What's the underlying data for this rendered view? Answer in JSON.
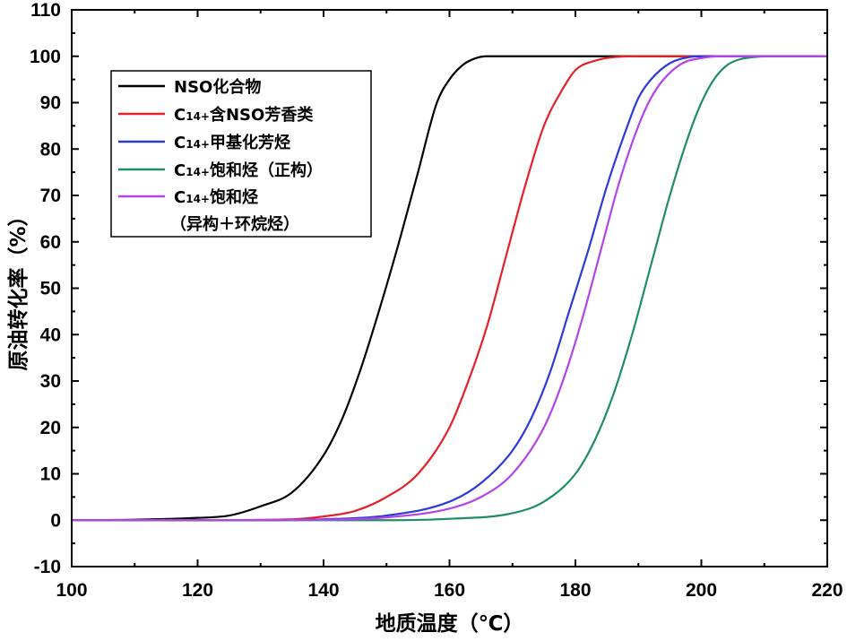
{
  "chart_data": {
    "type": "line",
    "title": "",
    "xlabel": "地质温度（℃）",
    "ylabel": "原油转化率（%）",
    "xlim": [
      100,
      220
    ],
    "ylim": [
      -10,
      110
    ],
    "xticks": [
      100,
      120,
      140,
      160,
      180,
      200,
      220
    ],
    "yticks": [
      -10,
      0,
      10,
      20,
      30,
      40,
      50,
      60,
      70,
      80,
      90,
      100,
      110
    ],
    "x_minor_step": 10,
    "y_minor_step": 5,
    "legend_position": "top-left",
    "series": [
      {
        "name": "NSO化合物",
        "legend_prefix": "",
        "legend_sub": "",
        "legend_main": "NSO化合物",
        "legend_line2": "",
        "color": "#000000",
        "x": [
          100,
          110,
          120,
          125,
          130,
          135,
          140,
          143,
          146,
          149,
          152,
          155,
          158,
          160,
          162,
          164,
          166,
          168,
          170,
          180,
          200,
          220
        ],
        "values": [
          0,
          0.1,
          0.5,
          1,
          3,
          6,
          14,
          22,
          33,
          46,
          60,
          75,
          90,
          95,
          98,
          99.5,
          100,
          100,
          100,
          100,
          100,
          100
        ]
      },
      {
        "name": "C14+含NSO芳香类",
        "legend_prefix": "C",
        "legend_sub": "14+",
        "legend_main": "含NSO芳香类",
        "legend_line2": "",
        "color": "#e32126",
        "x": [
          100,
          120,
          135,
          140,
          145,
          150,
          155,
          160,
          163,
          166,
          169,
          172,
          175,
          178,
          180,
          183,
          186,
          190,
          220
        ],
        "values": [
          0,
          0,
          0.2,
          0.8,
          2,
          5,
          10,
          20,
          30,
          42,
          57,
          72,
          85,
          93,
          97,
          99,
          99.8,
          100,
          100
        ]
      },
      {
        "name": "C14+甲基化芳烃",
        "legend_prefix": "C",
        "legend_sub": "14+",
        "legend_main": "甲基化芳烃",
        "legend_line2": "",
        "color": "#2b3bd6",
        "x": [
          100,
          130,
          140,
          150,
          160,
          165,
          170,
          173,
          176,
          179,
          182,
          185,
          188,
          190,
          192,
          195,
          198,
          200,
          220
        ],
        "values": [
          0,
          0,
          0.2,
          1,
          4,
          8,
          15,
          22,
          32,
          45,
          58,
          72,
          84,
          91,
          95,
          98.5,
          99.8,
          100,
          100
        ]
      },
      {
        "name": "C14+饱和烃（正构）",
        "legend_prefix": "C",
        "legend_sub": "14+",
        "legend_main": "饱和烃（正构）",
        "legend_line2": "",
        "color": "#1f8c6a",
        "x": [
          100,
          150,
          160,
          170,
          175,
          180,
          183,
          186,
          189,
          192,
          195,
          198,
          200,
          202,
          204,
          206,
          209,
          212,
          220
        ],
        "values": [
          0,
          0,
          0.3,
          1.5,
          4,
          10,
          17,
          27,
          40,
          55,
          70,
          83,
          90,
          95,
          98,
          99.3,
          99.9,
          100,
          100
        ]
      },
      {
        "name": "C14+饱和烃（异构＋环烷烃）",
        "legend_prefix": "C",
        "legend_sub": "14+",
        "legend_main": "饱和烃",
        "legend_line2": "（异构＋环烷烃）",
        "color": "#b444e6",
        "x": [
          100,
          140,
          150,
          160,
          165,
          170,
          175,
          178,
          181,
          184,
          187,
          190,
          192,
          194,
          197,
          200,
          203,
          220
        ],
        "values": [
          0,
          0.1,
          0.6,
          2.5,
          5,
          10,
          20,
          30,
          43,
          58,
          73,
          85,
          91,
          95,
          98.5,
          99.6,
          100,
          100
        ]
      }
    ]
  }
}
